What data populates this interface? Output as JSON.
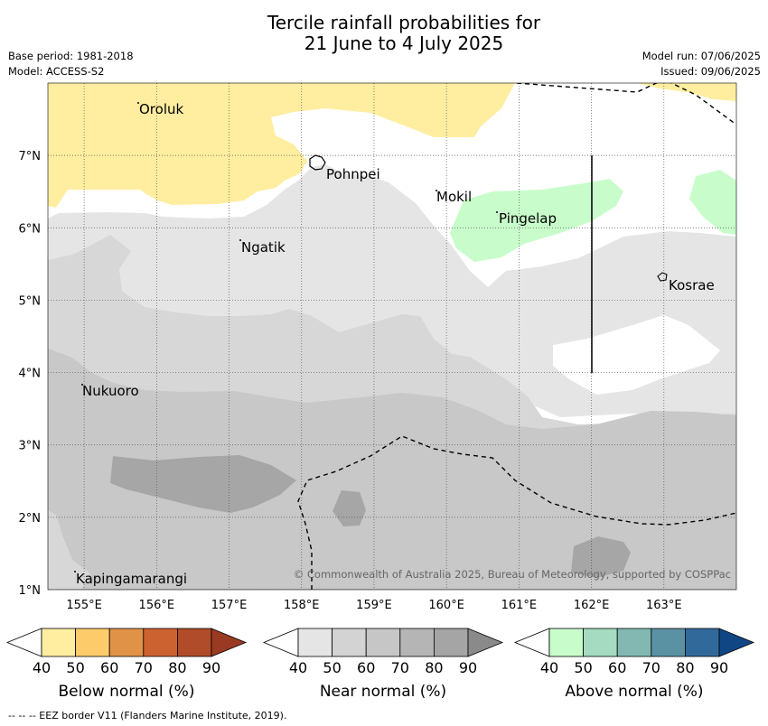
{
  "title_line1": "Tercile rainfall probabilities for",
  "title_line2": "21 June to 4 July 2025",
  "base_period": "Base period: 1981-2018",
  "model": "Model: ACCESS-S2",
  "model_run": "Model run: 07/06/2025",
  "issued": "Issued: 09/06/2025",
  "copyright": "© Commonwealth of Australia 2025, Bureau of Meteorology, supported by COSPPac",
  "footnote": "--  --  -- EEZ border V11 (Flanders Marine Institute, 2019).",
  "axes": {
    "lat_ticks": [
      "7°N",
      "6°N",
      "5°N",
      "4°N",
      "3°N",
      "2°N",
      "1°N"
    ],
    "lon_ticks": [
      "155°E",
      "156°E",
      "157°E",
      "158°E",
      "159°E",
      "160°E",
      "161°E",
      "162°E",
      "163°E"
    ],
    "lat_range": [
      1,
      8
    ],
    "lon_range": [
      154.5,
      164
    ]
  },
  "places": [
    "Oroluk",
    "Pohnpei",
    "Mokil",
    "Pingelap",
    "Ngatik",
    "Kosrae",
    "Nukuoro",
    "Kapingamarangi"
  ],
  "legends": [
    {
      "title": "Below normal (%)",
      "ticks": [
        "40",
        "50",
        "60",
        "70",
        "80",
        "90"
      ],
      "colors": [
        "#ffffff",
        "#ffeda0",
        "#fecb6b",
        "#e09346",
        "#cd6231",
        "#b04c29",
        "#9b3a22"
      ]
    },
    {
      "title": "Near normal (%)",
      "ticks": [
        "40",
        "50",
        "60",
        "70",
        "80",
        "90"
      ],
      "colors": [
        "#ffffff",
        "#e5e5e5",
        "#d3d3d3",
        "#c6c6c6",
        "#b5b5b5",
        "#a5a5a5",
        "#8a8a8a"
      ]
    },
    {
      "title": "Above normal (%)",
      "ticks": [
        "40",
        "50",
        "60",
        "70",
        "80",
        "90"
      ],
      "colors": [
        "#ffffff",
        "#c8fdcb",
        "#a4dbc1",
        "#82b8b1",
        "#5a92a3",
        "#32699b",
        "#114684"
      ]
    }
  ],
  "colors": {
    "below_40": "#ffeda0",
    "near_40": "#e5e5e5",
    "near_50": "#d7d7d7",
    "near_60": "#c8c8c8",
    "near_70": "#a6a6a6",
    "above_40": "#c8fdcb",
    "grid": "#555555"
  }
}
